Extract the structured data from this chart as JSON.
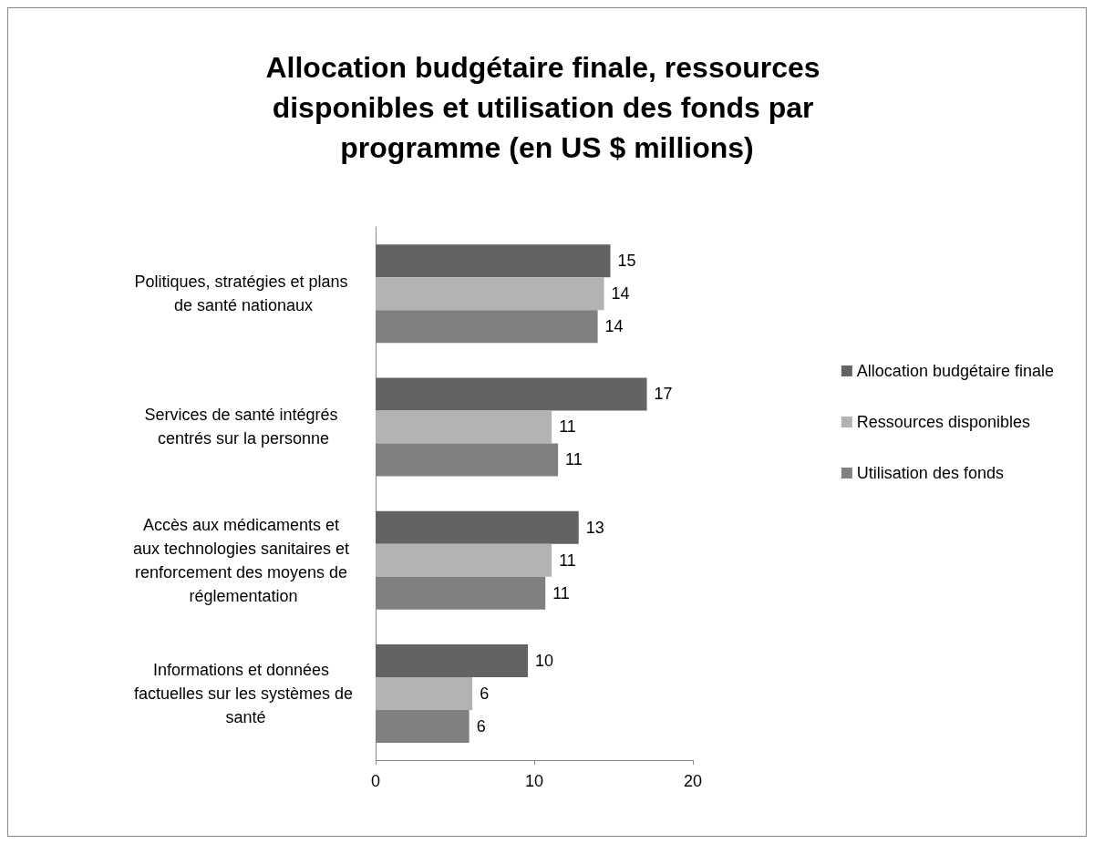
{
  "chart_data": {
    "type": "bar",
    "orientation": "horizontal",
    "title": "Allocation budgétaire finale, ressources disponibles et utilisation des fonds par programme (en US $ millions)",
    "categories": [
      "Politiques, stratégies et plans de santé nationaux",
      "Services de santé intégrés centrés sur la personne",
      "Accès aux médicaments et aux technologies sanitaires et renforcement des moyens de réglementation",
      "Informations et données factuelles sur les systèmes de santé"
    ],
    "series": [
      {
        "name": "Allocation budgétaire finale",
        "color": "#636363",
        "values": [
          14.8,
          17.1,
          12.8,
          9.6
        ],
        "value_labels": [
          "15",
          "17",
          "13",
          "10"
        ]
      },
      {
        "name": "Ressources disponibles",
        "color": "#b3b3b3",
        "values": [
          14.4,
          11.1,
          11.1,
          6.1
        ],
        "value_labels": [
          "14",
          "11",
          "11",
          "6"
        ]
      },
      {
        "name": "Utilisation des fonds",
        "color": "#808080",
        "values": [
          14.0,
          11.5,
          10.7,
          5.9
        ],
        "value_labels": [
          "14",
          "11",
          "11",
          "6"
        ]
      }
    ],
    "xlim": [
      0,
      20
    ],
    "xticks": [
      0,
      10,
      20
    ],
    "grid": false,
    "legend": "right"
  }
}
